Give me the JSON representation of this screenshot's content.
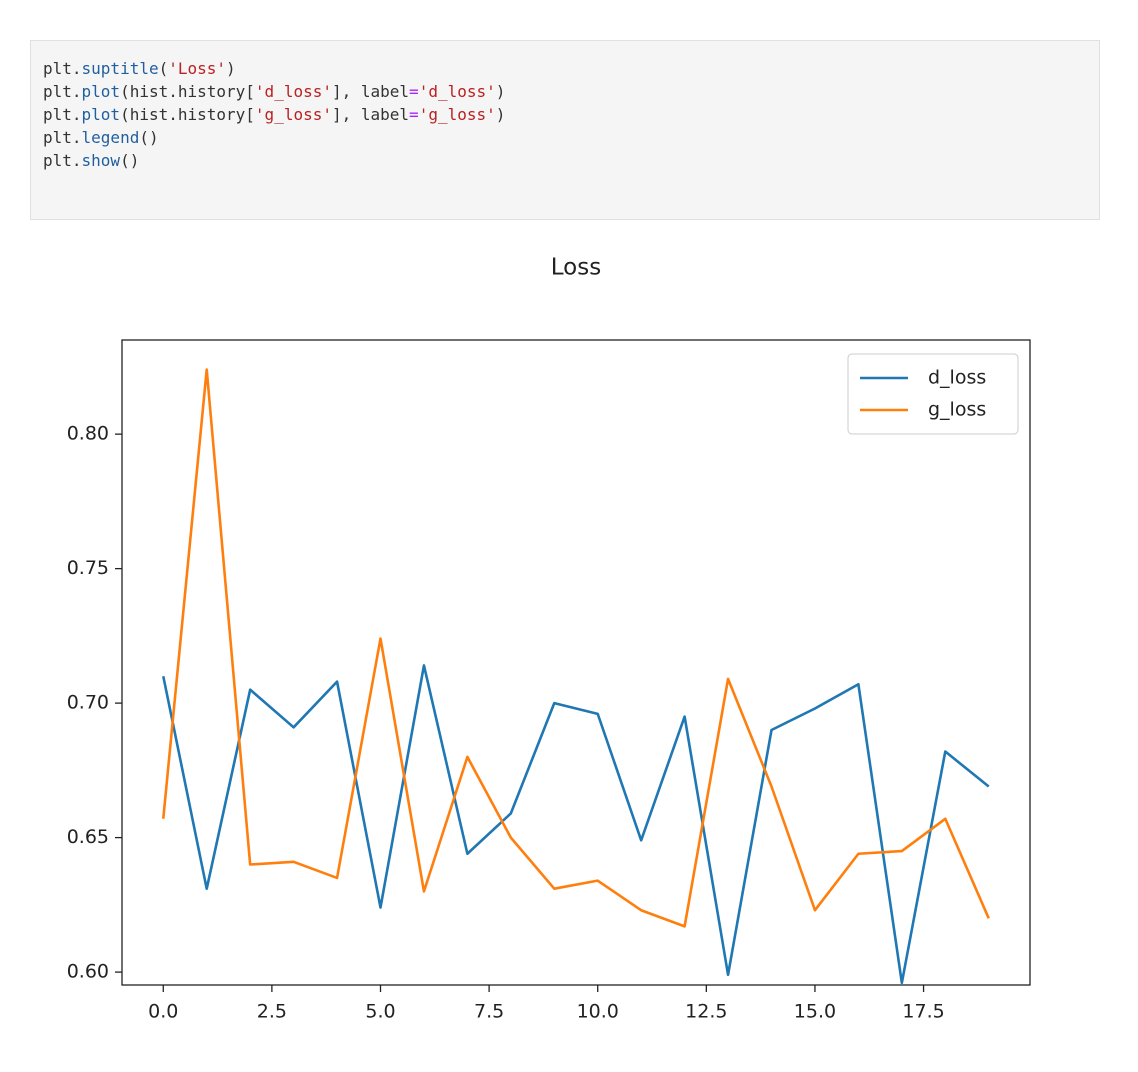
{
  "code": {
    "lines": [
      [
        {
          "text": "plt.",
          "color": "#333333"
        },
        {
          "text": "suptitle",
          "color": "#1f5f9f"
        },
        {
          "text": "(",
          "color": "#333333"
        },
        {
          "text": "'Loss'",
          "color": "#ba2121"
        },
        {
          "text": ")",
          "color": "#333333"
        }
      ],
      [
        {
          "text": "plt.",
          "color": "#333333"
        },
        {
          "text": "plot",
          "color": "#1f5f9f"
        },
        {
          "text": "(hist.history[",
          "color": "#333333"
        },
        {
          "text": "'d_loss'",
          "color": "#ba2121"
        },
        {
          "text": "], label",
          "color": "#333333"
        },
        {
          "text": "=",
          "color": "#aa22ff"
        },
        {
          "text": "'d_loss'",
          "color": "#ba2121"
        },
        {
          "text": ")",
          "color": "#333333"
        }
      ],
      [
        {
          "text": "plt.",
          "color": "#333333"
        },
        {
          "text": "plot",
          "color": "#1f5f9f"
        },
        {
          "text": "(hist.history[",
          "color": "#333333"
        },
        {
          "text": "'g_loss'",
          "color": "#ba2121"
        },
        {
          "text": "], label",
          "color": "#333333"
        },
        {
          "text": "=",
          "color": "#aa22ff"
        },
        {
          "text": "'g_loss'",
          "color": "#ba2121"
        },
        {
          "text": ")",
          "color": "#333333"
        }
      ],
      [
        {
          "text": "plt.",
          "color": "#333333"
        },
        {
          "text": "legend",
          "color": "#1f5f9f"
        },
        {
          "text": "()",
          "color": "#333333"
        }
      ],
      [
        {
          "text": "plt.",
          "color": "#333333"
        },
        {
          "text": "show",
          "color": "#1f5f9f"
        },
        {
          "text": "()",
          "color": "#333333"
        }
      ]
    ]
  },
  "chart_data": {
    "type": "line",
    "title": "Loss",
    "x": [
      0,
      1,
      2,
      3,
      4,
      5,
      6,
      7,
      8,
      9,
      10,
      11,
      12,
      13,
      14,
      15,
      16,
      17,
      18,
      19
    ],
    "series": [
      {
        "name": "d_loss",
        "color": "#1f77b4",
        "values": [
          0.71,
          0.631,
          0.705,
          0.691,
          0.708,
          0.624,
          0.714,
          0.644,
          0.659,
          0.7,
          0.696,
          0.649,
          0.695,
          0.599,
          0.69,
          0.698,
          0.707,
          0.596,
          0.682,
          0.669
        ]
      },
      {
        "name": "g_loss",
        "color": "#ff7f0e",
        "values": [
          0.657,
          0.824,
          0.64,
          0.641,
          0.635,
          0.724,
          0.63,
          0.68,
          0.65,
          0.631,
          0.634,
          0.623,
          0.617,
          0.709,
          0.669,
          0.623,
          0.644,
          0.645,
          0.657,
          0.62
        ]
      }
    ],
    "xlim": [
      -0.95,
      19.95
    ],
    "xticks": [
      {
        "value": 0,
        "label": "0.0"
      },
      2.5,
      {
        "value": 5,
        "label": "5.0"
      },
      7.5,
      {
        "value": 10,
        "label": "10.0"
      },
      12.5,
      {
        "value": 15,
        "label": "15.0"
      },
      17.5
    ],
    "ylim": [
      0.5952,
      0.835
    ],
    "yticks": [
      {
        "value": 0.6,
        "label": "0.60"
      },
      0.65,
      {
        "value": 0.7,
        "label": "0.70"
      },
      0.75,
      {
        "value": 0.8,
        "label": "0.80"
      }
    ],
    "grid": false,
    "legend": "upper right"
  }
}
